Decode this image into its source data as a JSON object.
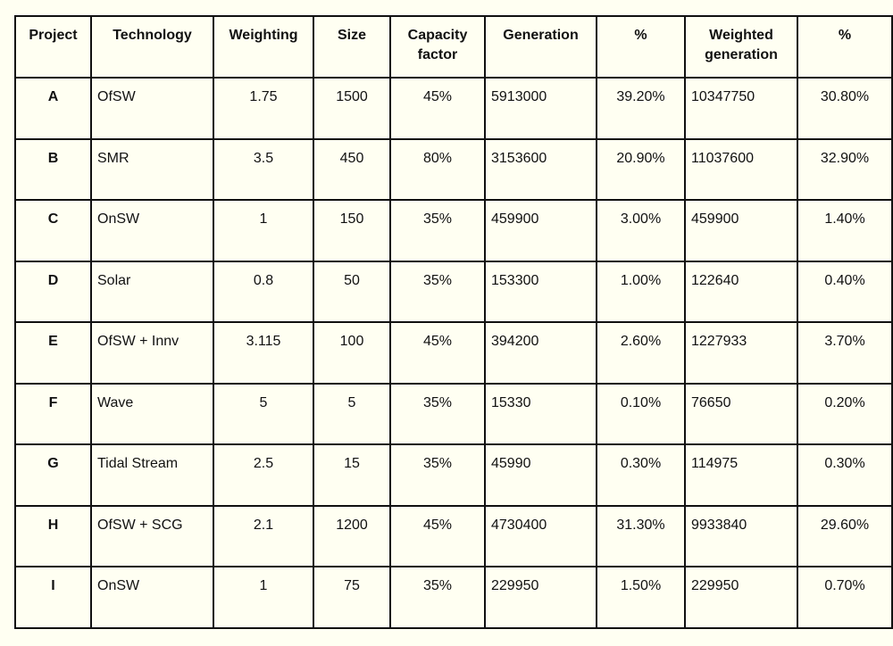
{
  "headers": [
    "Project",
    "Technology",
    "Weighting",
    "Size",
    "Capacity factor",
    "Generation",
    "%",
    "Weighted generation",
    "%"
  ],
  "rows": [
    [
      "A",
      "OfSW",
      "1.75",
      "1500",
      "45%",
      "5913000",
      "39.20%",
      "10347750",
      "30.80%"
    ],
    [
      "B",
      "SMR",
      "3.5",
      "450",
      "80%",
      "3153600",
      "20.90%",
      "11037600",
      "32.90%"
    ],
    [
      "C",
      "OnSW",
      "1",
      "150",
      "35%",
      "459900",
      "3.00%",
      "459900",
      "1.40%"
    ],
    [
      "D",
      "Solar",
      "0.8",
      "50",
      "35%",
      "153300",
      "1.00%",
      "122640",
      "0.40%"
    ],
    [
      "E",
      "OfSW + Innv",
      "3.115",
      "100",
      "45%",
      "394200",
      "2.60%",
      "1227933",
      "3.70%"
    ],
    [
      "F",
      "Wave",
      "5",
      "5",
      "35%",
      "15330",
      "0.10%",
      "76650",
      "0.20%"
    ],
    [
      "G",
      "Tidal Stream",
      "2.5",
      "15",
      "35%",
      "45990",
      "0.30%",
      "114975",
      "0.30%"
    ],
    [
      "H",
      "OfSW + SCG",
      "2.1",
      "1200",
      "45%",
      "4730400",
      "31.30%",
      "9933840",
      "29.60%"
    ],
    [
      "I",
      "OnSW",
      "1",
      "75",
      "35%",
      "229950",
      "1.50%",
      "229950",
      "0.70%"
    ]
  ]
}
